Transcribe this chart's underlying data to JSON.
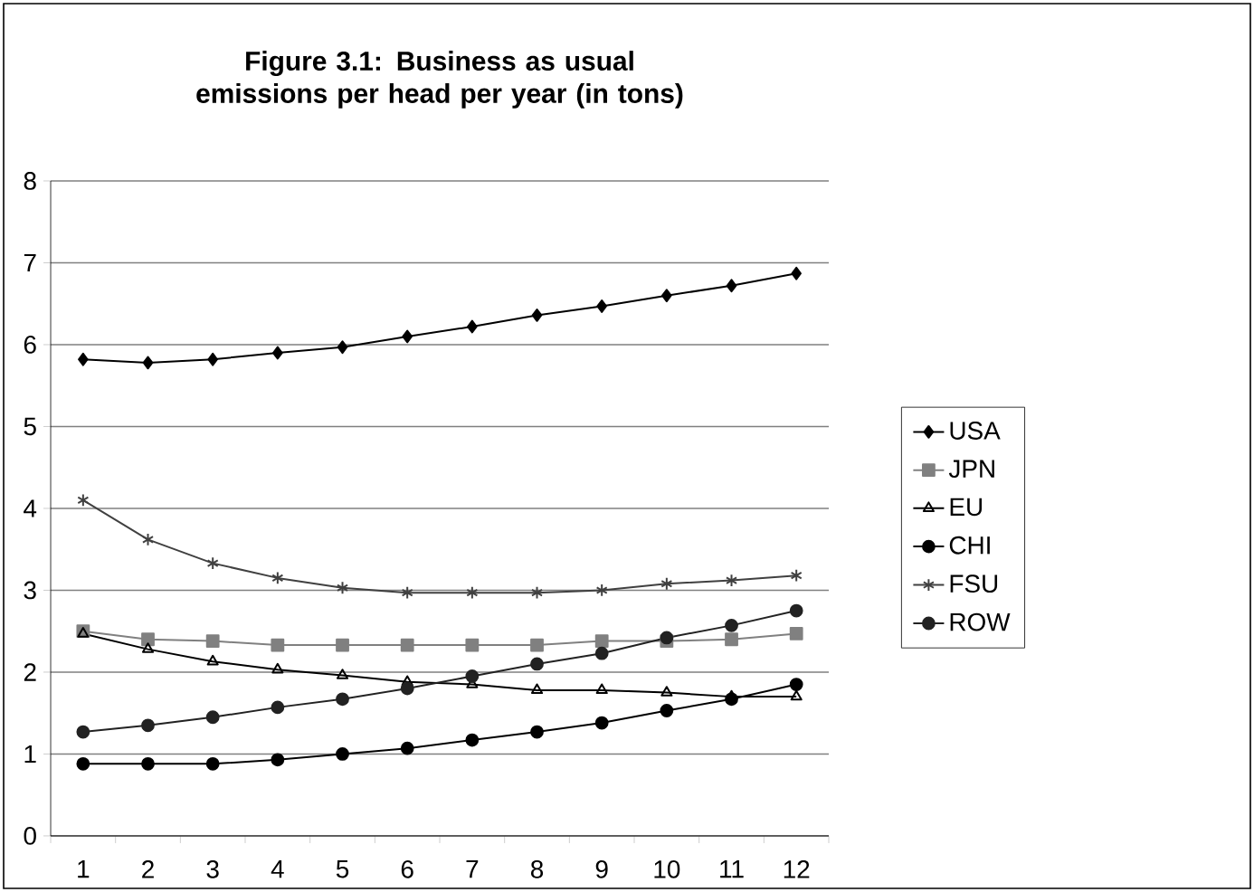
{
  "chart_data": {
    "type": "line",
    "title": "Figure 3.1: Business as usual emissions per head per year (in tons)",
    "categories": [
      "1",
      "2",
      "3",
      "4",
      "5",
      "6",
      "7",
      "8",
      "9",
      "10",
      "11",
      "12"
    ],
    "ylim": [
      0,
      8
    ],
    "yticks": [
      0,
      1,
      2,
      3,
      4,
      5,
      6,
      7,
      8
    ],
    "grid": "y",
    "legend": "right",
    "series": [
      {
        "name": "USA",
        "color": "#000000",
        "marker": "diamond",
        "values": [
          5.82,
          5.78,
          5.82,
          5.9,
          5.97,
          6.1,
          6.22,
          6.36,
          6.47,
          6.6,
          6.72,
          6.87
        ]
      },
      {
        "name": "JPN",
        "color": "#808080",
        "marker": "square",
        "values": [
          2.5,
          2.4,
          2.38,
          2.33,
          2.33,
          2.33,
          2.33,
          2.33,
          2.38,
          2.38,
          2.4,
          2.47
        ]
      },
      {
        "name": "EU",
        "color": "#000000",
        "marker": "triangle",
        "values": [
          2.47,
          2.28,
          2.13,
          2.03,
          1.96,
          1.88,
          1.85,
          1.78,
          1.78,
          1.75,
          1.7,
          1.7
        ]
      },
      {
        "name": "CHI",
        "color": "#000000",
        "marker": "circle",
        "values": [
          0.88,
          0.88,
          0.88,
          0.93,
          1.0,
          1.07,
          1.17,
          1.27,
          1.38,
          1.53,
          1.67,
          1.85
        ]
      },
      {
        "name": "FSU",
        "color": "#404040",
        "marker": "cross",
        "values": [
          4.1,
          3.62,
          3.33,
          3.15,
          3.03,
          2.97,
          2.97,
          2.97,
          3.0,
          3.08,
          3.12,
          3.18
        ]
      },
      {
        "name": "ROW",
        "color": "#222222",
        "marker": "circle",
        "values": [
          1.27,
          1.35,
          1.45,
          1.57,
          1.67,
          1.8,
          1.95,
          2.1,
          2.23,
          2.42,
          2.57,
          2.75
        ]
      }
    ]
  }
}
